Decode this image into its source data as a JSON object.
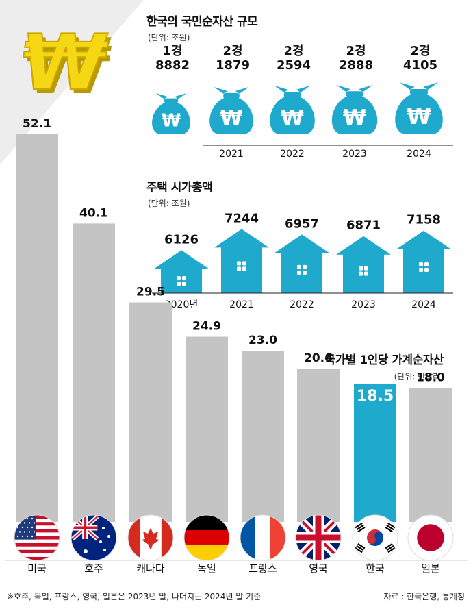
{
  "colors": {
    "accent": "#1ea9cd",
    "bar_gray": "#c4c4c4",
    "diagonal": "#ededed",
    "gold": "#f5d813"
  },
  "logo_icon": "won-sign-icon",
  "net_assets": {
    "title": "한국의 국민순자산 규모",
    "unit": "(단위: 조원)",
    "chart_data": {
      "type": "bar",
      "icon": "money-bag-icon",
      "bag_symbol": "₩",
      "categories": [
        "",
        "2021",
        "2022",
        "2023",
        "2024"
      ],
      "value_labels": [
        [
          "1경",
          "8882"
        ],
        [
          "2경",
          "1879"
        ],
        [
          "2경",
          "2594"
        ],
        [
          "2경",
          "2888"
        ],
        [
          "2경",
          "4105"
        ]
      ],
      "values": [
        18882,
        21879,
        22594,
        22888,
        24105
      ]
    }
  },
  "housing": {
    "title": "주택 시가총액",
    "unit": "(단위: 조원)",
    "chart_data": {
      "type": "bar",
      "icon": "house-icon",
      "categories": [
        "2020년",
        "2021",
        "2022",
        "2023",
        "2024"
      ],
      "values": [
        6126,
        7244,
        6957,
        6871,
        7158
      ]
    }
  },
  "per_capita": {
    "title": "국가별 1인당 가계순자산",
    "unit": "(단위: 만달러)",
    "chart_data": {
      "type": "bar",
      "categories": [
        "미국",
        "호주",
        "캐나다",
        "독일",
        "프랑스",
        "영국",
        "한국",
        "일본"
      ],
      "values": [
        52.1,
        40.1,
        29.5,
        24.9,
        23.0,
        20.6,
        18.5,
        18.0
      ],
      "value_labels": [
        "52.1",
        "40.1",
        "29.5",
        "24.9",
        "23.0",
        "20.6",
        "18.5",
        "18.0"
      ],
      "highlight": "한국",
      "flags": [
        "us-flag-icon",
        "australia-flag-icon",
        "canada-flag-icon",
        "germany-flag-icon",
        "france-flag-icon",
        "uk-flag-icon",
        "korea-flag-icon",
        "japan-flag-icon"
      ]
    }
  },
  "footer": {
    "note": "※호주, 독일, 프랑스, 영국, 일본은 2023년 말, 나머지는 2024년 말 기준",
    "source": "자료 : 한국은행, 통계청"
  }
}
